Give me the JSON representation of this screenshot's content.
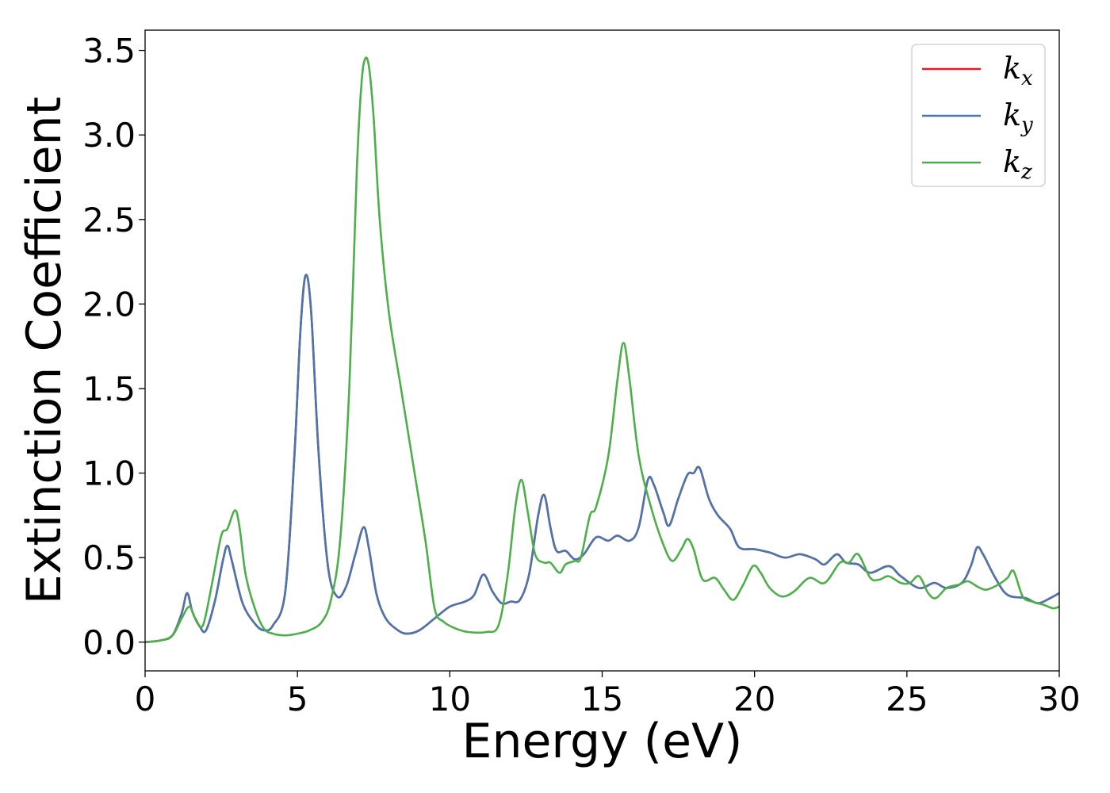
{
  "chart_data": {
    "type": "line",
    "xlabel": "Energy (eV)",
    "ylabel": "Extinction Coefficient",
    "xlim": [
      0,
      30
    ],
    "ylim": [
      -0.17,
      3.62
    ],
    "xticks": [
      0,
      5,
      10,
      15,
      20,
      25,
      30
    ],
    "yticks": [
      0.0,
      0.5,
      1.0,
      1.5,
      2.0,
      2.5,
      3.0,
      3.5
    ],
    "xtick_labels": [
      "0",
      "5",
      "10",
      "15",
      "20",
      "25",
      "30"
    ],
    "ytick_labels": [
      "0.0",
      "0.5",
      "1.0",
      "1.5",
      "2.0",
      "2.5",
      "3.0",
      "3.5"
    ],
    "grid": false,
    "legend_position": "top-right",
    "series": [
      {
        "name": "k_x",
        "legend_base": "k",
        "legend_sub": "x",
        "color": "#e41a1c",
        "points": [
          [
            0,
            0.0
          ],
          [
            0.5,
            0.01
          ],
          [
            0.9,
            0.04
          ],
          [
            1.2,
            0.17
          ],
          [
            1.38,
            0.29
          ],
          [
            1.55,
            0.18
          ],
          [
            1.8,
            0.09
          ],
          [
            2.0,
            0.07
          ],
          [
            2.3,
            0.25
          ],
          [
            2.55,
            0.48
          ],
          [
            2.7,
            0.57
          ],
          [
            2.85,
            0.48
          ],
          [
            3.2,
            0.23
          ],
          [
            3.6,
            0.11
          ],
          [
            3.9,
            0.07
          ],
          [
            4.2,
            0.1
          ],
          [
            4.6,
            0.3
          ],
          [
            4.9,
            1.1
          ],
          [
            5.1,
            1.85
          ],
          [
            5.27,
            2.17
          ],
          [
            5.45,
            1.95
          ],
          [
            5.7,
            1.1
          ],
          [
            6.0,
            0.45
          ],
          [
            6.3,
            0.27
          ],
          [
            6.6,
            0.33
          ],
          [
            6.9,
            0.52
          ],
          [
            7.17,
            0.68
          ],
          [
            7.35,
            0.55
          ],
          [
            7.6,
            0.28
          ],
          [
            7.9,
            0.14
          ],
          [
            8.3,
            0.07
          ],
          [
            8.6,
            0.05
          ],
          [
            9.0,
            0.07
          ],
          [
            9.5,
            0.14
          ],
          [
            10.0,
            0.21
          ],
          [
            10.5,
            0.24
          ],
          [
            10.8,
            0.28
          ],
          [
            11.1,
            0.4
          ],
          [
            11.4,
            0.3
          ],
          [
            11.7,
            0.23
          ],
          [
            12.0,
            0.24
          ],
          [
            12.3,
            0.25
          ],
          [
            12.6,
            0.4
          ],
          [
            12.9,
            0.75
          ],
          [
            13.1,
            0.87
          ],
          [
            13.3,
            0.68
          ],
          [
            13.5,
            0.54
          ],
          [
            13.8,
            0.54
          ],
          [
            14.1,
            0.49
          ],
          [
            14.4,
            0.52
          ],
          [
            14.8,
            0.62
          ],
          [
            15.2,
            0.6
          ],
          [
            15.5,
            0.63
          ],
          [
            15.9,
            0.6
          ],
          [
            16.2,
            0.68
          ],
          [
            16.5,
            0.96
          ],
          [
            16.7,
            0.93
          ],
          [
            17.0,
            0.77
          ],
          [
            17.2,
            0.69
          ],
          [
            17.5,
            0.85
          ],
          [
            17.8,
            0.99
          ],
          [
            18.0,
            1.0
          ],
          [
            18.2,
            1.03
          ],
          [
            18.5,
            0.85
          ],
          [
            18.8,
            0.75
          ],
          [
            19.2,
            0.67
          ],
          [
            19.5,
            0.56
          ],
          [
            20.0,
            0.55
          ],
          [
            20.5,
            0.53
          ],
          [
            21.0,
            0.5
          ],
          [
            21.5,
            0.52
          ],
          [
            22.0,
            0.49
          ],
          [
            22.3,
            0.46
          ],
          [
            22.7,
            0.52
          ],
          [
            23.0,
            0.47
          ],
          [
            23.4,
            0.46
          ],
          [
            23.8,
            0.41
          ],
          [
            24.4,
            0.45
          ],
          [
            24.8,
            0.39
          ],
          [
            25.4,
            0.32
          ],
          [
            25.9,
            0.35
          ],
          [
            26.3,
            0.32
          ],
          [
            26.8,
            0.35
          ],
          [
            27.1,
            0.45
          ],
          [
            27.3,
            0.56
          ],
          [
            27.5,
            0.52
          ],
          [
            27.9,
            0.38
          ],
          [
            28.3,
            0.28
          ],
          [
            28.9,
            0.26
          ],
          [
            29.3,
            0.23
          ],
          [
            29.7,
            0.26
          ],
          [
            30.0,
            0.29
          ]
        ]
      },
      {
        "name": "k_y",
        "legend_base": "k",
        "legend_sub": "y",
        "color": "#4a76ad",
        "points": [
          [
            0,
            0.0
          ],
          [
            0.5,
            0.01
          ],
          [
            0.9,
            0.04
          ],
          [
            1.2,
            0.17
          ],
          [
            1.38,
            0.29
          ],
          [
            1.55,
            0.18
          ],
          [
            1.8,
            0.09
          ],
          [
            2.0,
            0.07
          ],
          [
            2.3,
            0.25
          ],
          [
            2.55,
            0.48
          ],
          [
            2.7,
            0.57
          ],
          [
            2.85,
            0.48
          ],
          [
            3.2,
            0.23
          ],
          [
            3.6,
            0.11
          ],
          [
            3.9,
            0.07
          ],
          [
            4.2,
            0.1
          ],
          [
            4.6,
            0.3
          ],
          [
            4.9,
            1.1
          ],
          [
            5.1,
            1.85
          ],
          [
            5.27,
            2.17
          ],
          [
            5.45,
            1.95
          ],
          [
            5.7,
            1.1
          ],
          [
            6.0,
            0.45
          ],
          [
            6.3,
            0.27
          ],
          [
            6.6,
            0.33
          ],
          [
            6.9,
            0.52
          ],
          [
            7.17,
            0.68
          ],
          [
            7.35,
            0.55
          ],
          [
            7.6,
            0.28
          ],
          [
            7.9,
            0.14
          ],
          [
            8.3,
            0.07
          ],
          [
            8.6,
            0.05
          ],
          [
            9.0,
            0.07
          ],
          [
            9.5,
            0.14
          ],
          [
            10.0,
            0.21
          ],
          [
            10.5,
            0.24
          ],
          [
            10.8,
            0.28
          ],
          [
            11.1,
            0.4
          ],
          [
            11.4,
            0.3
          ],
          [
            11.7,
            0.23
          ],
          [
            12.0,
            0.24
          ],
          [
            12.3,
            0.25
          ],
          [
            12.6,
            0.4
          ],
          [
            12.9,
            0.75
          ],
          [
            13.1,
            0.87
          ],
          [
            13.3,
            0.68
          ],
          [
            13.5,
            0.54
          ],
          [
            13.8,
            0.54
          ],
          [
            14.1,
            0.49
          ],
          [
            14.4,
            0.52
          ],
          [
            14.8,
            0.62
          ],
          [
            15.2,
            0.6
          ],
          [
            15.5,
            0.63
          ],
          [
            15.9,
            0.6
          ],
          [
            16.2,
            0.68
          ],
          [
            16.5,
            0.96
          ],
          [
            16.7,
            0.93
          ],
          [
            17.0,
            0.77
          ],
          [
            17.2,
            0.69
          ],
          [
            17.5,
            0.85
          ],
          [
            17.8,
            0.99
          ],
          [
            18.0,
            1.0
          ],
          [
            18.2,
            1.03
          ],
          [
            18.5,
            0.85
          ],
          [
            18.8,
            0.75
          ],
          [
            19.2,
            0.67
          ],
          [
            19.5,
            0.56
          ],
          [
            20.0,
            0.55
          ],
          [
            20.5,
            0.53
          ],
          [
            21.0,
            0.5
          ],
          [
            21.5,
            0.52
          ],
          [
            22.0,
            0.49
          ],
          [
            22.3,
            0.46
          ],
          [
            22.7,
            0.52
          ],
          [
            23.0,
            0.47
          ],
          [
            23.4,
            0.46
          ],
          [
            23.8,
            0.41
          ],
          [
            24.4,
            0.45
          ],
          [
            24.8,
            0.39
          ],
          [
            25.4,
            0.32
          ],
          [
            25.9,
            0.35
          ],
          [
            26.3,
            0.32
          ],
          [
            26.8,
            0.35
          ],
          [
            27.1,
            0.45
          ],
          [
            27.3,
            0.56
          ],
          [
            27.5,
            0.52
          ],
          [
            27.9,
            0.38
          ],
          [
            28.3,
            0.28
          ],
          [
            28.9,
            0.26
          ],
          [
            29.3,
            0.23
          ],
          [
            29.7,
            0.26
          ],
          [
            30.0,
            0.29
          ]
        ]
      },
      {
        "name": "k_z",
        "legend_base": "k",
        "legend_sub": "z",
        "color": "#4daf4a",
        "points": [
          [
            0,
            0.0
          ],
          [
            0.5,
            0.01
          ],
          [
            0.9,
            0.04
          ],
          [
            1.2,
            0.14
          ],
          [
            1.45,
            0.21
          ],
          [
            1.65,
            0.14
          ],
          [
            1.9,
            0.1
          ],
          [
            2.2,
            0.35
          ],
          [
            2.5,
            0.63
          ],
          [
            2.7,
            0.67
          ],
          [
            2.95,
            0.78
          ],
          [
            3.1,
            0.68
          ],
          [
            3.3,
            0.4
          ],
          [
            3.6,
            0.2
          ],
          [
            3.9,
            0.08
          ],
          [
            4.2,
            0.05
          ],
          [
            4.6,
            0.04
          ],
          [
            5.0,
            0.05
          ],
          [
            5.4,
            0.07
          ],
          [
            5.8,
            0.12
          ],
          [
            6.1,
            0.25
          ],
          [
            6.4,
            0.6
          ],
          [
            6.7,
            1.5
          ],
          [
            6.95,
            2.8
          ],
          [
            7.1,
            3.3
          ],
          [
            7.22,
            3.45
          ],
          [
            7.35,
            3.4
          ],
          [
            7.5,
            3.1
          ],
          [
            7.7,
            2.5
          ],
          [
            8.0,
            1.95
          ],
          [
            8.4,
            1.5
          ],
          [
            8.8,
            1.05
          ],
          [
            9.2,
            0.6
          ],
          [
            9.5,
            0.2
          ],
          [
            9.8,
            0.12
          ],
          [
            10.2,
            0.08
          ],
          [
            10.6,
            0.06
          ],
          [
            11.2,
            0.06
          ],
          [
            11.6,
            0.1
          ],
          [
            11.9,
            0.4
          ],
          [
            12.15,
            0.8
          ],
          [
            12.35,
            0.96
          ],
          [
            12.55,
            0.78
          ],
          [
            12.8,
            0.52
          ],
          [
            13.1,
            0.47
          ],
          [
            13.3,
            0.47
          ],
          [
            13.6,
            0.41
          ],
          [
            13.8,
            0.46
          ],
          [
            14.1,
            0.48
          ],
          [
            14.3,
            0.5
          ],
          [
            14.6,
            0.75
          ],
          [
            14.8,
            0.8
          ],
          [
            15.2,
            1.1
          ],
          [
            15.5,
            1.55
          ],
          [
            15.7,
            1.77
          ],
          [
            15.9,
            1.55
          ],
          [
            16.2,
            1.1
          ],
          [
            16.6,
            0.8
          ],
          [
            17.0,
            0.58
          ],
          [
            17.3,
            0.48
          ],
          [
            17.6,
            0.55
          ],
          [
            17.8,
            0.61
          ],
          [
            18.0,
            0.55
          ],
          [
            18.3,
            0.37
          ],
          [
            18.7,
            0.38
          ],
          [
            19.0,
            0.31
          ],
          [
            19.3,
            0.25
          ],
          [
            19.6,
            0.33
          ],
          [
            19.95,
            0.45
          ],
          [
            20.2,
            0.41
          ],
          [
            20.5,
            0.32
          ],
          [
            20.9,
            0.27
          ],
          [
            21.3,
            0.3
          ],
          [
            21.8,
            0.38
          ],
          [
            22.3,
            0.35
          ],
          [
            22.8,
            0.47
          ],
          [
            23.1,
            0.47
          ],
          [
            23.4,
            0.52
          ],
          [
            23.8,
            0.38
          ],
          [
            24.1,
            0.37
          ],
          [
            24.4,
            0.39
          ],
          [
            24.8,
            0.35
          ],
          [
            25.1,
            0.35
          ],
          [
            25.4,
            0.39
          ],
          [
            25.7,
            0.29
          ],
          [
            25.95,
            0.26
          ],
          [
            26.3,
            0.32
          ],
          [
            26.7,
            0.34
          ],
          [
            27.0,
            0.36
          ],
          [
            27.3,
            0.33
          ],
          [
            27.6,
            0.31
          ],
          [
            28.0,
            0.34
          ],
          [
            28.3,
            0.38
          ],
          [
            28.5,
            0.42
          ],
          [
            28.8,
            0.27
          ],
          [
            29.1,
            0.24
          ],
          [
            29.5,
            0.22
          ],
          [
            29.8,
            0.2
          ],
          [
            30.0,
            0.21
          ]
        ]
      }
    ]
  }
}
